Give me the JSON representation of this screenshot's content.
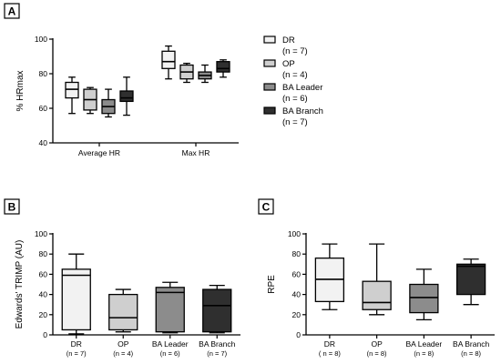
{
  "chart_data": [
    {
      "panel": "A",
      "type": "box",
      "ylabel": "% HRmax",
      "ylim": [
        40,
        100
      ],
      "yticks": [
        "40",
        "60",
        "80",
        "100"
      ],
      "categories": [
        "Average HR",
        "Max HR"
      ],
      "legend": {
        "position": "right",
        "entries": [
          {
            "name": "DR",
            "n": "(n = 7)",
            "color": "#f2f2f2"
          },
          {
            "name": "OP",
            "n": "(n = 4)",
            "color": "#cfcfcf"
          },
          {
            "name": "BA Leader",
            "n": "(n = 6)",
            "color": "#8c8c8c"
          },
          {
            "name": "BA Branch",
            "n": "(n = 7)",
            "color": "#2f2f2f"
          }
        ]
      },
      "series": [
        {
          "name": "DR",
          "boxes": [
            {
              "category": "Average HR",
              "min": 57,
              "q1": 66,
              "median": 71,
              "q3": 75,
              "max": 78
            },
            {
              "category": "Max HR",
              "min": 77,
              "q1": 83,
              "median": 87,
              "q3": 93,
              "max": 96
            }
          ]
        },
        {
          "name": "OP",
          "boxes": [
            {
              "category": "Average HR",
              "min": 57,
              "q1": 59,
              "median": 65,
              "q3": 71,
              "max": 72
            },
            {
              "category": "Max HR",
              "min": 75,
              "q1": 77,
              "median": 81,
              "q3": 85,
              "max": 86
            }
          ]
        },
        {
          "name": "BA Leader",
          "boxes": [
            {
              "category": "Average HR",
              "min": 55,
              "q1": 57,
              "median": 61,
              "q3": 65,
              "max": 71
            },
            {
              "category": "Max HR",
              "min": 75,
              "q1": 77,
              "median": 79,
              "q3": 81,
              "max": 85
            }
          ]
        },
        {
          "name": "BA Branch",
          "boxes": [
            {
              "category": "Average HR",
              "min": 56,
              "q1": 64,
              "median": 66,
              "q3": 70,
              "max": 78
            },
            {
              "category": "Max HR",
              "min": 78,
              "q1": 81,
              "median": 83,
              "q3": 87,
              "max": 88
            }
          ]
        }
      ]
    },
    {
      "panel": "B",
      "type": "box",
      "ylabel": "Edwards' TRIMP (AU)",
      "ylim": [
        0,
        100
      ],
      "yticks": [
        "0",
        "20",
        "40",
        "60",
        "80",
        "100"
      ],
      "categories": [
        "DR",
        "OP",
        "BA Leader",
        "BA Branch"
      ],
      "category_n": [
        "(n = 7)",
        "(n = 4)",
        "(n = 6)",
        "(n = 7)"
      ],
      "colors": [
        "#f2f2f2",
        "#cfcfcf",
        "#8c8c8c",
        "#2f2f2f"
      ],
      "boxes": [
        {
          "min": 1,
          "q1": 5,
          "median": 59,
          "q3": 65,
          "max": 80
        },
        {
          "min": 3,
          "q1": 5,
          "median": 17,
          "q3": 40,
          "max": 45
        },
        {
          "min": 2,
          "q1": 3,
          "median": 42,
          "q3": 47,
          "max": 52
        },
        {
          "min": 2,
          "q1": 3,
          "median": 29,
          "q3": 45,
          "max": 49
        }
      ]
    },
    {
      "panel": "C",
      "type": "box",
      "ylabel": "RPE",
      "ylim": [
        0,
        100
      ],
      "yticks": [
        "0",
        "20",
        "40",
        "60",
        "80",
        "100"
      ],
      "categories": [
        "DR",
        "OP",
        "BA Leader",
        "BA Branch"
      ],
      "category_n": [
        "( n = 8)",
        "(n = 8)",
        "(n = 8)",
        "(n = 8)"
      ],
      "colors": [
        "#f2f2f2",
        "#cfcfcf",
        "#8c8c8c",
        "#2f2f2f"
      ],
      "boxes": [
        {
          "min": 25,
          "q1": 33,
          "median": 55,
          "q3": 76,
          "max": 90
        },
        {
          "min": 20,
          "q1": 25,
          "median": 32,
          "q3": 53,
          "max": 90
        },
        {
          "min": 15,
          "q1": 22,
          "median": 37,
          "q3": 50,
          "max": 65
        },
        {
          "min": 30,
          "q1": 40,
          "median": 68,
          "q3": 70,
          "max": 75
        }
      ]
    }
  ]
}
